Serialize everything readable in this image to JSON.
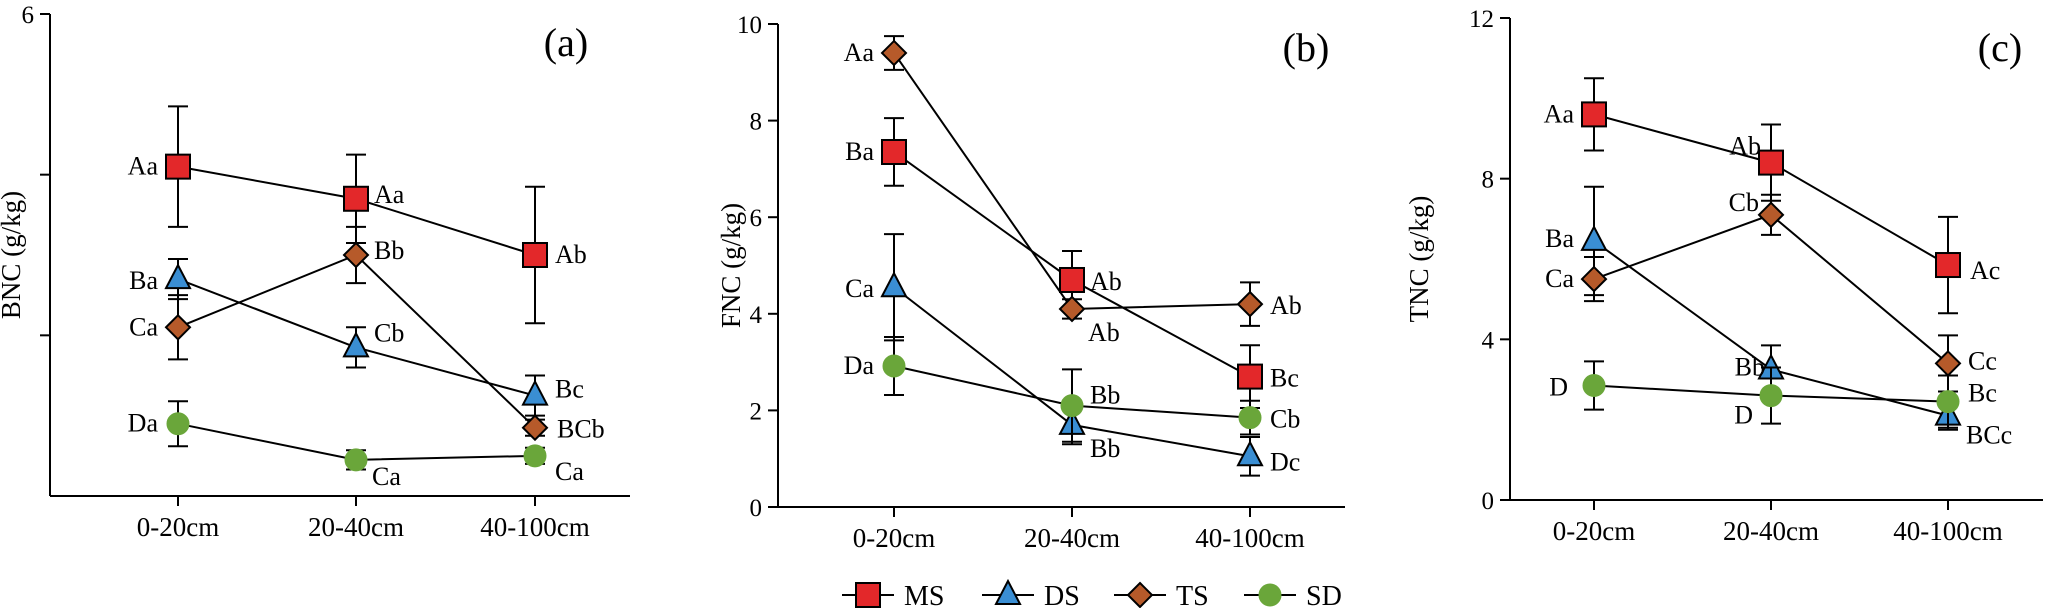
{
  "colors": {
    "MS": "#e3282a",
    "DS": "#3a8ed3",
    "TS": "#b65a2a",
    "SD": "#6aa63a",
    "line": "#000000"
  },
  "legend": [
    {
      "key": "MS",
      "label": "MS",
      "marker": "square"
    },
    {
      "key": "DS",
      "label": "DS",
      "marker": "triangle"
    },
    {
      "key": "TS",
      "label": "TS",
      "marker": "diamond"
    },
    {
      "key": "SD",
      "label": "SD",
      "marker": "circle"
    }
  ],
  "chart_data": [
    {
      "type": "line",
      "panel": "(a)",
      "ylabel": "BNC (g/kg)",
      "categories": [
        "0-20cm",
        "20-40cm",
        "40-100cm"
      ],
      "ylim": [
        0,
        6
      ],
      "yticks": [
        "6",
        "",
        ""
      ],
      "series": [
        {
          "name": "MS",
          "marker": "square",
          "values": [
            4.1,
            3.7,
            3.0
          ],
          "errors": [
            0.75,
            0.55,
            0.85
          ],
          "labels": [
            "Aa",
            "Aa",
            "Ab"
          ]
        },
        {
          "name": "DS",
          "marker": "triangle",
          "values": [
            2.7,
            1.85,
            1.25
          ],
          "errors": [
            0.25,
            0.25,
            0.25
          ],
          "labels": [
            "Ba",
            "Cb",
            "Bc"
          ]
        },
        {
          "name": "TS",
          "marker": "diamond",
          "values": [
            2.1,
            3.0,
            0.85
          ],
          "errors": [
            0.4,
            0.35,
            0.1
          ],
          "labels": [
            "Ca",
            "Bb",
            "BCb"
          ]
        },
        {
          "name": "SD",
          "marker": "circle",
          "values": [
            0.9,
            0.45,
            0.5
          ],
          "errors": [
            0.28,
            0.12,
            0.1
          ],
          "labels": [
            "Da",
            "Ca",
            "Ca"
          ]
        }
      ]
    },
    {
      "type": "line",
      "panel": "(b)",
      "ylabel": "FNC (g/kg)",
      "categories": [
        "0-20cm",
        "20-40cm",
        "40-100cm"
      ],
      "ylim": [
        0,
        10
      ],
      "yticks": [
        "0",
        "2",
        "4",
        "6",
        "8",
        "10"
      ],
      "series": [
        {
          "name": "MS",
          "marker": "square",
          "values": [
            7.35,
            4.7,
            2.7
          ],
          "errors": [
            0.7,
            0.6,
            0.65
          ],
          "labels": [
            "Ba",
            "Ab",
            "Bc"
          ]
        },
        {
          "name": "DS",
          "marker": "triangle",
          "values": [
            4.55,
            1.7,
            1.05
          ],
          "errors": [
            1.1,
            0.4,
            0.4
          ],
          "labels": [
            "Ca",
            "Bb",
            "Dc"
          ]
        },
        {
          "name": "TS",
          "marker": "diamond",
          "values": [
            9.4,
            4.1,
            4.2
          ],
          "errors": [
            0.35,
            0.2,
            0.45
          ],
          "labels": [
            "Aa",
            "Ab",
            "Ab"
          ]
        },
        {
          "name": "SD",
          "marker": "circle",
          "values": [
            2.92,
            2.1,
            1.85
          ],
          "errors": [
            0.6,
            0.75,
            0.35
          ],
          "labels": [
            "Da",
            "Bb",
            "Cb"
          ]
        }
      ]
    },
    {
      "type": "line",
      "panel": "(c)",
      "ylabel": "TNC (g/kg)",
      "categories": [
        "0-20cm",
        "20-40cm",
        "40-100cm"
      ],
      "ylim": [
        0,
        12
      ],
      "yticks": [
        "0",
        "4",
        "8",
        "12"
      ],
      "series": [
        {
          "name": "MS",
          "marker": "square",
          "values": [
            9.6,
            8.4,
            5.85
          ],
          "errors": [
            0.9,
            0.95,
            1.2
          ],
          "labels": [
            "Aa",
            "Ab",
            "Ac"
          ]
        },
        {
          "name": "DS",
          "marker": "triangle",
          "values": [
            6.45,
            3.25,
            2.1
          ],
          "errors": [
            1.35,
            0.6,
            0.35
          ],
          "labels": [
            "Ba",
            "Bb",
            "BCc"
          ]
        },
        {
          "name": "TS",
          "marker": "diamond",
          "values": [
            5.5,
            7.1,
            3.4
          ],
          "errors": [
            0.55,
            0.5,
            0.7
          ],
          "labels": [
            "Ca",
            "Cb",
            "Cc"
          ]
        },
        {
          "name": "SD",
          "marker": "circle",
          "values": [
            2.85,
            2.6,
            2.45
          ],
          "errors": [
            0.6,
            0.7,
            0.65
          ],
          "labels": [
            "D",
            "D",
            "Bc"
          ]
        }
      ]
    }
  ]
}
